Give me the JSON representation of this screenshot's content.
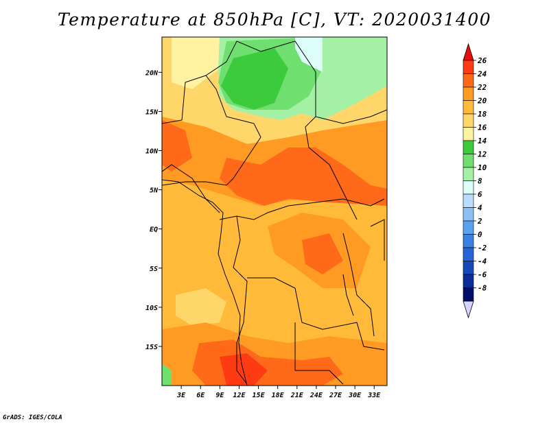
{
  "title": "Temperature at 850hPa [C], VT: 2020031400",
  "credit": "GrADS: IGES/COLA",
  "map": {
    "projection": "latlon",
    "lon_range": [
      0,
      35
    ],
    "lat_range": [
      -20,
      24.5
    ],
    "lon_ticks": [
      {
        "value": 3,
        "label": "3E"
      },
      {
        "value": 6,
        "label": "6E"
      },
      {
        "value": 9,
        "label": "9E"
      },
      {
        "value": 12,
        "label": "12E"
      },
      {
        "value": 15,
        "label": "15E"
      },
      {
        "value": 18,
        "label": "18E"
      },
      {
        "value": 21,
        "label": "21E"
      },
      {
        "value": 24,
        "label": "24E"
      },
      {
        "value": 27,
        "label": "27E"
      },
      {
        "value": 30,
        "label": "30E"
      },
      {
        "value": 33,
        "label": "33E"
      }
    ],
    "lat_ticks": [
      {
        "value": 20,
        "label": "20N"
      },
      {
        "value": 15,
        "label": "15N"
      },
      {
        "value": 10,
        "label": "10N"
      },
      {
        "value": 5,
        "label": "5N"
      },
      {
        "value": 0,
        "label": "EQ"
      },
      {
        "value": -5,
        "label": "5S"
      },
      {
        "value": -10,
        "label": "10S"
      },
      {
        "value": -15,
        "label": "15S"
      }
    ]
  },
  "colorbar": {
    "levels": [
      "26",
      "24",
      "22",
      "20",
      "18",
      "16",
      "14",
      "12",
      "10",
      "8",
      "6",
      "4",
      "2",
      "0",
      "-2",
      "-4",
      "-6",
      "-8"
    ],
    "colors": [
      "#ff3b14",
      "#ff6a1a",
      "#ff9a22",
      "#ffba3a",
      "#ffd66a",
      "#fff2a0",
      "#3ccb3c",
      "#6fe06f",
      "#a4f0a4",
      "#dcfdf8",
      "#b8ddff",
      "#8ec0f8",
      "#5aa2ee",
      "#3a82e0",
      "#2466d8",
      "#164ab8",
      "#0a2e98",
      "#020e6a"
    ],
    "top_color": "#e80c0c",
    "bottom_color": "#d8d4ff"
  }
}
